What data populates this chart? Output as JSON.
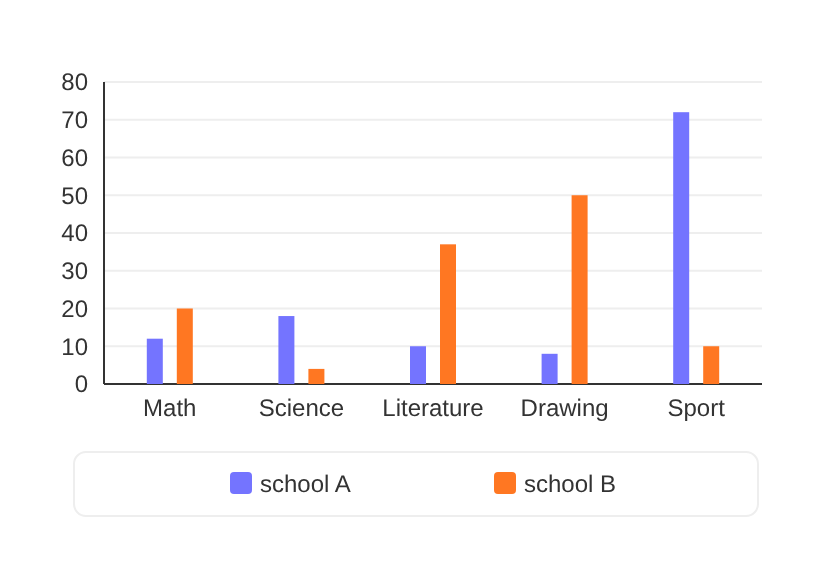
{
  "chart_data": {
    "type": "bar",
    "categories": [
      "Math",
      "Science",
      "Literature",
      "Drawing",
      "Sport"
    ],
    "series": [
      {
        "name": "school A",
        "color": "#7474ff",
        "values": [
          12,
          18,
          10,
          8,
          72
        ]
      },
      {
        "name": "school B",
        "color": "#ff7722",
        "values": [
          20,
          4,
          37,
          50,
          10
        ]
      }
    ],
    "ylim": [
      0,
      80
    ],
    "yticks": [
      0,
      10,
      20,
      30,
      40,
      50,
      60,
      70,
      80
    ],
    "grid": "y",
    "legend": "bottom"
  }
}
